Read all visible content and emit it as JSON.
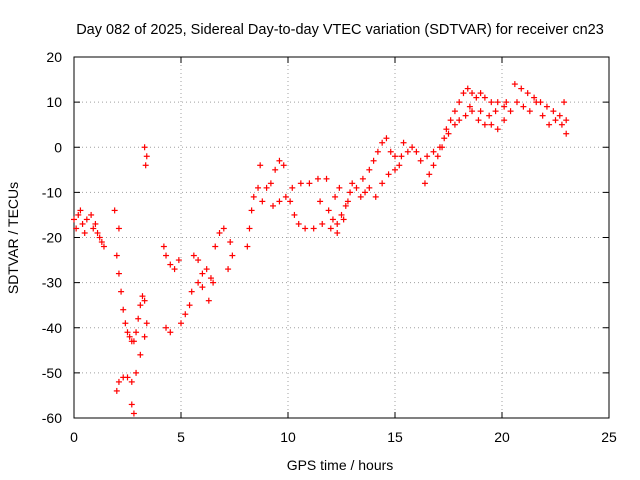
{
  "chart_data": {
    "type": "scatter",
    "title": "Day 082 of 2025, Sidereal Day-to-day VTEC variation (SDTVAR) for receiver cn23",
    "xlabel": "GPS time / hours",
    "ylabel": "SDTVAR / TECUs",
    "xlim": [
      0,
      25
    ],
    "ylim": [
      -60,
      20
    ],
    "xticks": [
      0,
      5,
      10,
      15,
      20,
      25
    ],
    "yticks": [
      -60,
      -50,
      -40,
      -30,
      -20,
      -10,
      0,
      10,
      20
    ],
    "grid": true,
    "marker": "+",
    "color": "#ff0000",
    "series": [
      {
        "name": "SDTVAR",
        "points": [
          [
            0.0,
            -16
          ],
          [
            0.1,
            -18
          ],
          [
            0.2,
            -15
          ],
          [
            0.3,
            -14
          ],
          [
            0.4,
            -17
          ],
          [
            0.5,
            -19
          ],
          [
            0.6,
            -16
          ],
          [
            0.8,
            -15
          ],
          [
            0.9,
            -18
          ],
          [
            1.0,
            -17
          ],
          [
            1.1,
            -19
          ],
          [
            1.2,
            -20
          ],
          [
            1.3,
            -21
          ],
          [
            1.4,
            -22
          ],
          [
            1.9,
            -14
          ],
          [
            2.1,
            -18
          ],
          [
            2.0,
            -24
          ],
          [
            2.1,
            -28
          ],
          [
            2.2,
            -32
          ],
          [
            2.3,
            -36
          ],
          [
            2.4,
            -39
          ],
          [
            2.5,
            -41
          ],
          [
            2.6,
            -42
          ],
          [
            2.7,
            -43
          ],
          [
            2.8,
            -43
          ],
          [
            2.9,
            -41
          ],
          [
            3.0,
            -38
          ],
          [
            3.1,
            -35
          ],
          [
            3.2,
            -33
          ],
          [
            3.3,
            -34
          ],
          [
            2.0,
            -54
          ],
          [
            2.1,
            -52
          ],
          [
            2.3,
            -51
          ],
          [
            2.5,
            -51
          ],
          [
            2.7,
            -52
          ],
          [
            2.9,
            -50
          ],
          [
            3.1,
            -46
          ],
          [
            3.3,
            -42
          ],
          [
            3.4,
            -39
          ],
          [
            2.7,
            -57
          ],
          [
            2.8,
            -59
          ],
          [
            3.3,
            0
          ],
          [
            3.4,
            -2
          ],
          [
            3.35,
            -4
          ],
          [
            4.2,
            -22
          ],
          [
            4.3,
            -24
          ],
          [
            4.5,
            -26
          ],
          [
            4.7,
            -27
          ],
          [
            4.9,
            -25
          ],
          [
            4.3,
            -40
          ],
          [
            4.5,
            -41
          ],
          [
            5.0,
            -39
          ],
          [
            5.2,
            -37
          ],
          [
            5.4,
            -35
          ],
          [
            5.5,
            -32
          ],
          [
            5.8,
            -30
          ],
          [
            6.0,
            -28
          ],
          [
            6.2,
            -27
          ],
          [
            6.4,
            -29
          ],
          [
            5.6,
            -24
          ],
          [
            5.8,
            -25
          ],
          [
            6.0,
            -31
          ],
          [
            6.3,
            -34
          ],
          [
            6.5,
            -30
          ],
          [
            6.6,
            -22
          ],
          [
            6.8,
            -19
          ],
          [
            7.0,
            -18
          ],
          [
            7.2,
            -27
          ],
          [
            7.4,
            -24
          ],
          [
            7.3,
            -21
          ],
          [
            8.1,
            -22
          ],
          [
            8.2,
            -18
          ],
          [
            8.3,
            -14
          ],
          [
            8.4,
            -11
          ],
          [
            8.6,
            -9
          ],
          [
            8.8,
            -12
          ],
          [
            9.0,
            -9
          ],
          [
            9.2,
            -8
          ],
          [
            9.4,
            -5
          ],
          [
            9.6,
            -3
          ],
          [
            8.7,
            -4
          ],
          [
            9.8,
            -4
          ],
          [
            9.3,
            -13
          ],
          [
            9.6,
            -12
          ],
          [
            9.9,
            -11
          ],
          [
            10.2,
            -9
          ],
          [
            10.6,
            -8
          ],
          [
            11.0,
            -8
          ],
          [
            11.4,
            -7
          ],
          [
            11.8,
            -7
          ],
          [
            10.1,
            -12
          ],
          [
            10.3,
            -15
          ],
          [
            10.5,
            -17
          ],
          [
            10.8,
            -18
          ],
          [
            11.2,
            -18
          ],
          [
            11.6,
            -17
          ],
          [
            12.0,
            -18
          ],
          [
            12.3,
            -17
          ],
          [
            12.5,
            -15
          ],
          [
            11.5,
            -12
          ],
          [
            12.7,
            -13
          ],
          [
            12.9,
            -10
          ],
          [
            13.0,
            -8
          ],
          [
            12.8,
            -12
          ],
          [
            12.6,
            -16
          ],
          [
            12.3,
            -19
          ],
          [
            12.1,
            -16
          ],
          [
            11.9,
            -14
          ],
          [
            12.2,
            -11
          ],
          [
            12.4,
            -9
          ],
          [
            13.2,
            -9
          ],
          [
            13.5,
            -7
          ],
          [
            13.8,
            -5
          ],
          [
            14.0,
            -3
          ],
          [
            14.2,
            -1
          ],
          [
            14.4,
            1
          ],
          [
            14.6,
            2
          ],
          [
            14.8,
            -1
          ],
          [
            15.0,
            -2
          ],
          [
            15.2,
            -4
          ],
          [
            13.4,
            -11
          ],
          [
            13.6,
            -10
          ],
          [
            13.8,
            -9
          ],
          [
            14.1,
            -11
          ],
          [
            14.4,
            -8
          ],
          [
            14.7,
            -6
          ],
          [
            15.0,
            -5
          ],
          [
            15.3,
            -2
          ],
          [
            15.6,
            -1
          ],
          [
            16.0,
            -1
          ],
          [
            15.4,
            1
          ],
          [
            15.8,
            0
          ],
          [
            16.2,
            -3
          ],
          [
            16.5,
            -2
          ],
          [
            16.8,
            -1
          ],
          [
            17.1,
            0
          ],
          [
            17.3,
            2
          ],
          [
            17.5,
            3
          ],
          [
            17.6,
            6
          ],
          [
            17.8,
            8
          ],
          [
            18.0,
            10
          ],
          [
            18.2,
            12
          ],
          [
            18.4,
            13
          ],
          [
            18.6,
            12
          ],
          [
            18.8,
            11
          ],
          [
            19.0,
            12
          ],
          [
            19.2,
            11
          ],
          [
            19.5,
            10
          ],
          [
            19.8,
            10
          ],
          [
            20.1,
            9
          ],
          [
            17.8,
            5
          ],
          [
            18.0,
            6
          ],
          [
            18.3,
            7
          ],
          [
            18.6,
            8
          ],
          [
            18.9,
            6
          ],
          [
            19.2,
            5
          ],
          [
            19.5,
            5
          ],
          [
            19.8,
            4
          ],
          [
            20.1,
            6
          ],
          [
            20.4,
            8
          ],
          [
            20.7,
            10
          ],
          [
            21.0,
            9
          ],
          [
            21.3,
            8
          ],
          [
            21.6,
            10
          ],
          [
            21.9,
            7
          ],
          [
            22.2,
            5
          ],
          [
            22.5,
            6
          ],
          [
            22.8,
            5
          ],
          [
            23.0,
            6
          ],
          [
            20.6,
            14
          ],
          [
            20.9,
            13
          ],
          [
            21.2,
            12
          ],
          [
            21.5,
            11
          ],
          [
            21.8,
            10
          ],
          [
            22.1,
            9
          ],
          [
            22.4,
            8
          ],
          [
            22.7,
            7
          ],
          [
            22.9,
            10
          ],
          [
            23.0,
            3
          ],
          [
            16.4,
            -8
          ],
          [
            16.6,
            -6
          ],
          [
            16.8,
            -4
          ],
          [
            17.0,
            -2
          ],
          [
            17.2,
            0
          ],
          [
            17.4,
            4
          ],
          [
            18.5,
            9
          ],
          [
            19.0,
            8
          ],
          [
            19.4,
            7
          ],
          [
            19.7,
            8
          ],
          [
            20.2,
            10
          ]
        ]
      }
    ]
  }
}
